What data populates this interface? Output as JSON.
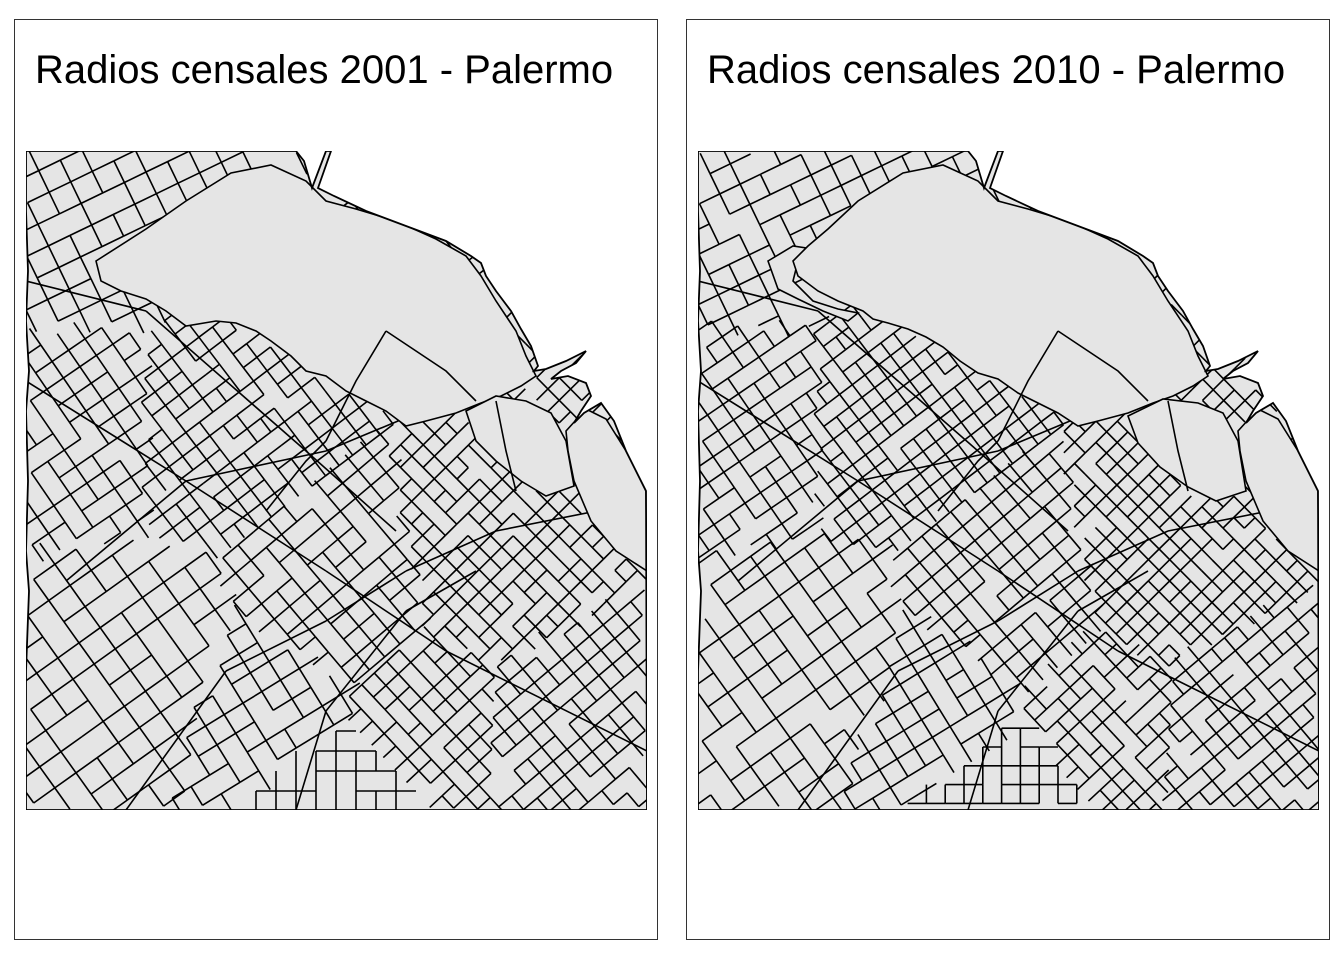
{
  "panels": [
    {
      "title": "Radios censales 2001 - Palermo",
      "year": "2001"
    },
    {
      "title": "Radios censales 2010 - Palermo",
      "year": "2010"
    }
  ],
  "colors": {
    "fill": "#e5e5e5",
    "stroke": "#000000",
    "border": "#333333",
    "background": "#ffffff"
  }
}
